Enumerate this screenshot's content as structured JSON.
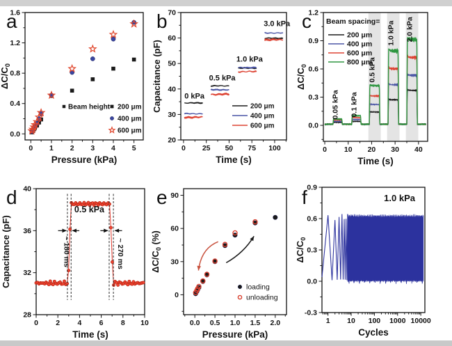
{
  "figure": {
    "description": "Six-panel capacitive pressure sensor characterization figure",
    "colors": {
      "black": "#1a1a1a",
      "blue": "#3a46a0",
      "slate_blue_line": "#4a55a5",
      "red": "#dd4333",
      "red_marker": "#e0462c",
      "green": "#2e9640",
      "navy": "#2c329e",
      "band_gray": "#e4e4e4",
      "frame_gray": "#d0d0d0"
    }
  },
  "chart_data": [
    {
      "letter": "a",
      "type": "scatter",
      "xlabel": "Pressure (kPa)",
      "ylabel": "ΔC/C_0",
      "xlim": [
        -0.28,
        5.45
      ],
      "ylim": [
        -0.08,
        1.6
      ],
      "xtick_vals": [
        0,
        1,
        2,
        3,
        4,
        5
      ],
      "xtick_labels": [
        "0",
        "1",
        "2",
        "3",
        "4",
        "5"
      ],
      "xminor_step": 0.5,
      "ytick_vals": [
        0,
        0.4,
        0.8,
        1.2,
        1.6
      ],
      "ytick_labels": [
        "0.0",
        "0.4",
        "0.8",
        "1.2",
        "1.6"
      ],
      "yminor_step": 0.2,
      "legend_title": "Beam height=",
      "series": [
        {
          "name": "200 μm",
          "marker": "square",
          "color": "#1a1a1a",
          "points": [
            [
              0.05,
              0.02
            ],
            [
              0.1,
              0.04
            ],
            [
              0.15,
              0.06
            ],
            [
              0.2,
              0.08
            ],
            [
              0.3,
              0.11
            ],
            [
              0.4,
              0.15
            ],
            [
              0.5,
              0.19
            ],
            [
              1,
              0.5
            ],
            [
              2,
              0.57
            ],
            [
              3,
              0.72
            ],
            [
              4,
              0.86
            ],
            [
              5,
              0.98
            ]
          ]
        },
        {
          "name": "400 μm",
          "marker": "circle",
          "color": "#3a46a0",
          "points": [
            [
              0.05,
              0.03
            ],
            [
              0.1,
              0.05
            ],
            [
              0.15,
              0.08
            ],
            [
              0.2,
              0.1
            ],
            [
              0.3,
              0.14
            ],
            [
              0.4,
              0.2
            ],
            [
              0.5,
              0.27
            ],
            [
              1,
              0.51
            ],
            [
              2,
              0.81
            ],
            [
              3,
              0.99
            ],
            [
              4,
              1.25
            ],
            [
              5,
              1.47
            ]
          ]
        },
        {
          "name": "600 μm",
          "marker": "star",
          "color": "#e0462c",
          "points": [
            [
              0.05,
              0.04
            ],
            [
              0.1,
              0.06
            ],
            [
              0.15,
              0.09
            ],
            [
              0.2,
              0.12
            ],
            [
              0.3,
              0.16
            ],
            [
              0.4,
              0.22
            ],
            [
              0.5,
              0.28
            ],
            [
              1,
              0.51
            ],
            [
              2,
              0.86
            ],
            [
              3,
              1.12
            ],
            [
              4,
              1.31
            ],
            [
              5,
              1.45
            ]
          ]
        }
      ]
    },
    {
      "letter": "b",
      "type": "steps",
      "xlabel": "Time (s)",
      "ylabel": "Capacitance (pF)",
      "xlim": [
        -3,
        113
      ],
      "ylim": [
        20,
        70
      ],
      "xtick_vals": [
        0,
        25,
        50,
        75,
        100
      ],
      "xtick_labels": [
        "0",
        "25",
        "50",
        "75",
        "100"
      ],
      "xminor_step": 12.5,
      "ytick_vals": [
        20,
        30,
        40,
        50,
        60,
        70
      ],
      "ytick_labels": [
        "20",
        "30",
        "40",
        "50",
        "60",
        "70"
      ],
      "yminor_step": 5,
      "segments": [
        [
          1,
          21
        ],
        [
          30,
          50
        ],
        [
          60,
          80
        ],
        [
          89,
          109
        ]
      ],
      "annotations": [
        {
          "text": "0 kPa",
          "x": 1,
          "y": 36.3
        },
        {
          "text": "0.5 kPa",
          "x": 28,
          "y": 43.3
        },
        {
          "text": "1.0 kPa",
          "x": 58,
          "y": 50.7
        },
        {
          "text": "3.0 kPa",
          "x": 88,
          "y": 64.7
        }
      ],
      "series": [
        {
          "name": "200 μm",
          "color": "#1a1a1a",
          "levels": [
            34.5,
            41.2,
            48.2,
            59.9
          ]
        },
        {
          "name": "400 μm",
          "color": "#4a55a5",
          "levels": [
            30.3,
            39.7,
            48.4,
            62.0
          ]
        },
        {
          "name": "600 μm",
          "color": "#dd4333",
          "levels": [
            28.9,
            37.9,
            46.8,
            59.3
          ]
        }
      ]
    },
    {
      "letter": "c",
      "type": "pulses",
      "xlabel": "Time (s)",
      "ylabel": "ΔC/C_0",
      "xlim": [
        -0.6,
        43.9
      ],
      "ylim": [
        -0.17,
        1.2
      ],
      "xtick_vals": [
        0,
        10,
        20,
        30,
        40
      ],
      "xtick_labels": [
        "0",
        "10",
        "20",
        "30",
        "40"
      ],
      "xminor_step": 5,
      "ytick_vals": [
        0,
        0.3,
        0.6,
        0.9,
        1.2
      ],
      "ytick_labels": [
        "0.0",
        "0.3",
        "0.6",
        "0.9",
        "1.2"
      ],
      "yminor_step": 0.15,
      "legend_title": "Beam spacing=",
      "pulses": [
        {
          "x0": 3.5,
          "x1": 7.5,
          "label": "0.05 kPa",
          "band": false,
          "label_y": 0.22
        },
        {
          "x0": 11.5,
          "x1": 15.5,
          "label": "0.1 kPa",
          "band": false,
          "label_y": 0.22
        },
        {
          "x0": 19.0,
          "x1": 23.5,
          "label": "0.5 kPa",
          "band": true,
          "label_y": 0.59
        },
        {
          "x0": 27.0,
          "x1": 31.5,
          "label": "1.0 kPa",
          "band": true,
          "label_y": 0.98
        },
        {
          "x0": 35.0,
          "x1": 39.5,
          "label": "2.0 kPa",
          "band": true,
          "label_y": 1.02
        }
      ],
      "series": [
        {
          "name": "200 μm",
          "color": "#1a1a1a",
          "heights": [
            0.02,
            0.03,
            0.13,
            0.26,
            0.36
          ]
        },
        {
          "name": "400 μm",
          "color": "#4a55a5",
          "heights": [
            0.03,
            0.05,
            0.21,
            0.42,
            0.52
          ]
        },
        {
          "name": "600 μm",
          "color": "#dd4333",
          "heights": [
            0.045,
            0.07,
            0.3,
            0.59,
            0.71
          ]
        },
        {
          "name": "800 μm",
          "color": "#2e9640",
          "heights": [
            0.055,
            0.09,
            0.41,
            0.78,
            0.9
          ]
        }
      ]
    },
    {
      "letter": "d",
      "type": "step-response",
      "xlabel": "Time (s)",
      "ylabel": "Capacitance (pF)",
      "xlim": [
        0,
        10
      ],
      "ylim": [
        28,
        40
      ],
      "xtick_vals": [
        0,
        2,
        4,
        6,
        8,
        10
      ],
      "xtick_labels": [
        "0",
        "2",
        "4",
        "6",
        "8",
        "10"
      ],
      "xminor_step": 1,
      "ytick_vals": [
        28,
        32,
        36,
        40
      ],
      "ytick_labels": [
        "28",
        "32",
        "36",
        "40"
      ],
      "yminor_step": 2,
      "color": "#e0372a",
      "baseline": 31.0,
      "plateau": 38.55,
      "rise": [
        2.95,
        3.2
      ],
      "fall": [
        6.8,
        7.1
      ],
      "label": "0.5 kPa",
      "rise_label": "~ 180 ms",
      "fall_label": "~ 270 ms"
    },
    {
      "letter": "e",
      "type": "hysteresis",
      "xlabel": "Pressure (kPa)",
      "ylabel": "ΔC/C_0 (%)",
      "xlim": [
        -0.28,
        2.28
      ],
      "ylim": [
        -18,
        96
      ],
      "xtick_vals": [
        0,
        0.5,
        1,
        1.5,
        2
      ],
      "xtick_labels": [
        "0.0",
        "0.5",
        "1.0",
        "1.5",
        "2.0"
      ],
      "xminor_step": 0.25,
      "ytick_vals": [
        0,
        30,
        60,
        90
      ],
      "ytick_labels": [
        "0",
        "30",
        "60",
        "90"
      ],
      "yminor_step": 15,
      "series": [
        {
          "name": "loading",
          "marker": "circle",
          "color": "#1a1a1a",
          "points": [
            [
              0.02,
              1
            ],
            [
              0.05,
              3
            ],
            [
              0.07,
              4.5
            ],
            [
              0.1,
              6.5
            ],
            [
              0.2,
              12
            ],
            [
              0.3,
              18
            ],
            [
              0.5,
              30
            ],
            [
              0.75,
              44.5
            ],
            [
              1.0,
              54
            ],
            [
              1.5,
              65
            ],
            [
              2.0,
              70
            ]
          ]
        },
        {
          "name": "unloading",
          "marker": "circle-open",
          "color": "#d9402f",
          "points": [
            [
              0.02,
              2
            ],
            [
              0.05,
              4
            ],
            [
              0.07,
              5.5
            ],
            [
              0.1,
              7.5
            ],
            [
              0.2,
              12.5
            ],
            [
              0.3,
              18.5
            ],
            [
              0.5,
              30.5
            ],
            [
              0.75,
              45.5
            ],
            [
              1.0,
              56
            ],
            [
              1.5,
              66
            ]
          ]
        }
      ],
      "arrows": [
        {
          "name": "unloading-arrow",
          "color": "#c8503c",
          "start": [
            0.58,
            48
          ],
          "ctrl": [
            0.16,
            42
          ],
          "end": [
            0.09,
            22
          ]
        },
        {
          "name": "loading-arrow",
          "color": "#1a1a1a",
          "start": [
            0.78,
            29
          ],
          "ctrl": [
            1.22,
            38
          ],
          "end": [
            1.47,
            53
          ]
        }
      ]
    },
    {
      "letter": "f",
      "type": "fatigue",
      "xlabel": "Cycles",
      "ylabel": "ΔC/C_0",
      "xscale": "log",
      "xlim": [
        0.55,
        15000
      ],
      "ylim": [
        -0.3,
        0.9
      ],
      "xtick_vals": [
        1,
        10,
        100,
        1000,
        10000
      ],
      "xtick_labels": [
        "1",
        "10",
        "100",
        "1000",
        "10000"
      ],
      "ytick_vals": [
        -0.3,
        0,
        0.3,
        0.6,
        0.9
      ],
      "ytick_labels": [
        "-0.3",
        "0.0",
        "0.3",
        "0.6",
        "0.9"
      ],
      "yminor_step": 0.15,
      "color": "#2c329e",
      "amplitude": 0.63,
      "label": "1.0 kPa"
    }
  ]
}
